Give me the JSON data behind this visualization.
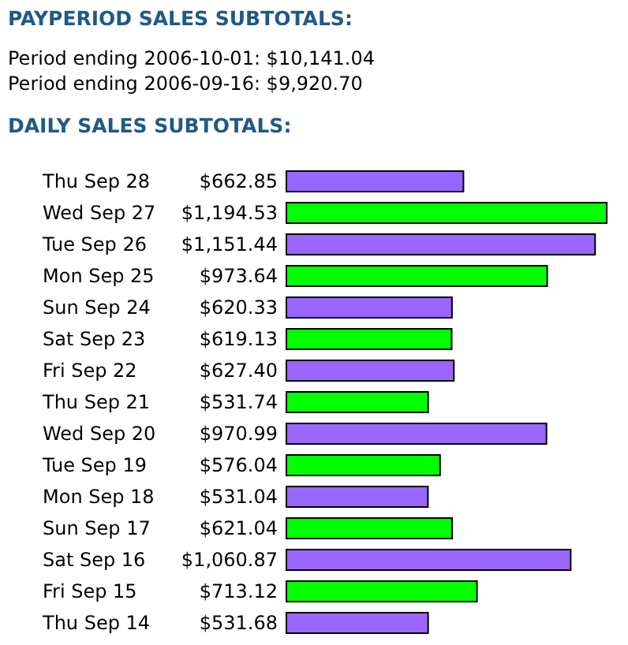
{
  "chart_data": {
    "type": "bar",
    "orientation": "horizontal",
    "title": "PAYPERIOD SALES SUBTOTALS:",
    "subtitle": "DAILY SALES SUBTOTALS:",
    "annotations": [
      "Period ending 2006-10-01: $10,141.04",
      "Period ending 2006-09-16: $9,920.70"
    ],
    "categories": [
      "Thu Sep 28",
      "Wed Sep 27",
      "Tue Sep 26",
      "Mon Sep 25",
      "Sun Sep 24",
      "Sat Sep 23",
      "Fri Sep 22",
      "Thu Sep 21",
      "Wed Sep 20",
      "Tue Sep 19",
      "Mon Sep 18",
      "Sun Sep 17",
      "Sat Sep 16",
      "Fri Sep 15",
      "Thu Sep 14"
    ],
    "values": [
      662.85,
      1194.53,
      1151.44,
      973.64,
      620.33,
      619.13,
      627.4,
      531.74,
      970.99,
      576.04,
      531.04,
      621.04,
      1060.87,
      713.12,
      531.68
    ],
    "value_labels": [
      "$662.85",
      "$1,194.53",
      "$1,151.44",
      "$973.64",
      "$620.33",
      "$619.13",
      "$627.40",
      "$531.74",
      "$970.99",
      "$576.04",
      "$531.04",
      "$621.04",
      "$1,060.87",
      "$713.12",
      "$531.68"
    ],
    "colors": [
      "#9966ff",
      "#00ff00",
      "#9966ff",
      "#00ff00",
      "#9966ff",
      "#00ff00",
      "#9966ff",
      "#00ff00",
      "#9966ff",
      "#00ff00",
      "#9966ff",
      "#00ff00",
      "#9966ff",
      "#00ff00",
      "#9966ff"
    ]
  }
}
